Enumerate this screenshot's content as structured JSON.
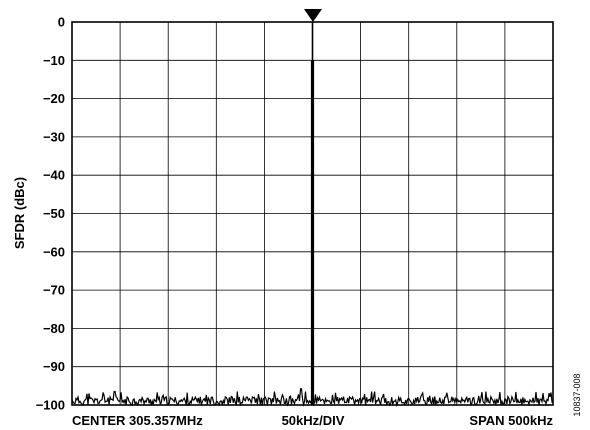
{
  "chart_data": {
    "type": "line",
    "ylabel": "SFDR (dBc)",
    "ylim": [
      -100,
      0
    ],
    "yticks": [
      0,
      -10,
      -20,
      -30,
      -40,
      -50,
      -60,
      -70,
      -80,
      -90,
      -100
    ],
    "xlim_khz": [
      -250,
      250
    ],
    "x_divisions": 10,
    "grid": true,
    "x_annotations": {
      "center": "CENTER 305.357MHz",
      "div": "50kHz/DIV",
      "span": "SPAN 500kHz"
    },
    "series": [
      {
        "values_note": "",
        "x_khz": [
          0
        ],
        "y_dbc": [
          0
        ]
      }
    ],
    "carrier_x_khz": 0,
    "carrier_level_dbc": 0,
    "marker": "triangle-down",
    "noise_floor_dbc": -98,
    "spurs": [
      {
        "x_khz": -205,
        "y_dbc": -96.5
      },
      {
        "x_khz": -130,
        "y_dbc": -96.8
      },
      {
        "x_khz": -78,
        "y_dbc": -96.5
      },
      {
        "x_khz": -12,
        "y_dbc": -95.8
      },
      {
        "x_khz": 65,
        "y_dbc": -96.5
      },
      {
        "x_khz": 140,
        "y_dbc": -96.8
      },
      {
        "x_khz": 180,
        "y_dbc": -96.5
      }
    ],
    "spur_line_at_carrier_dbc": -10,
    "figure_id": "10837-008"
  }
}
